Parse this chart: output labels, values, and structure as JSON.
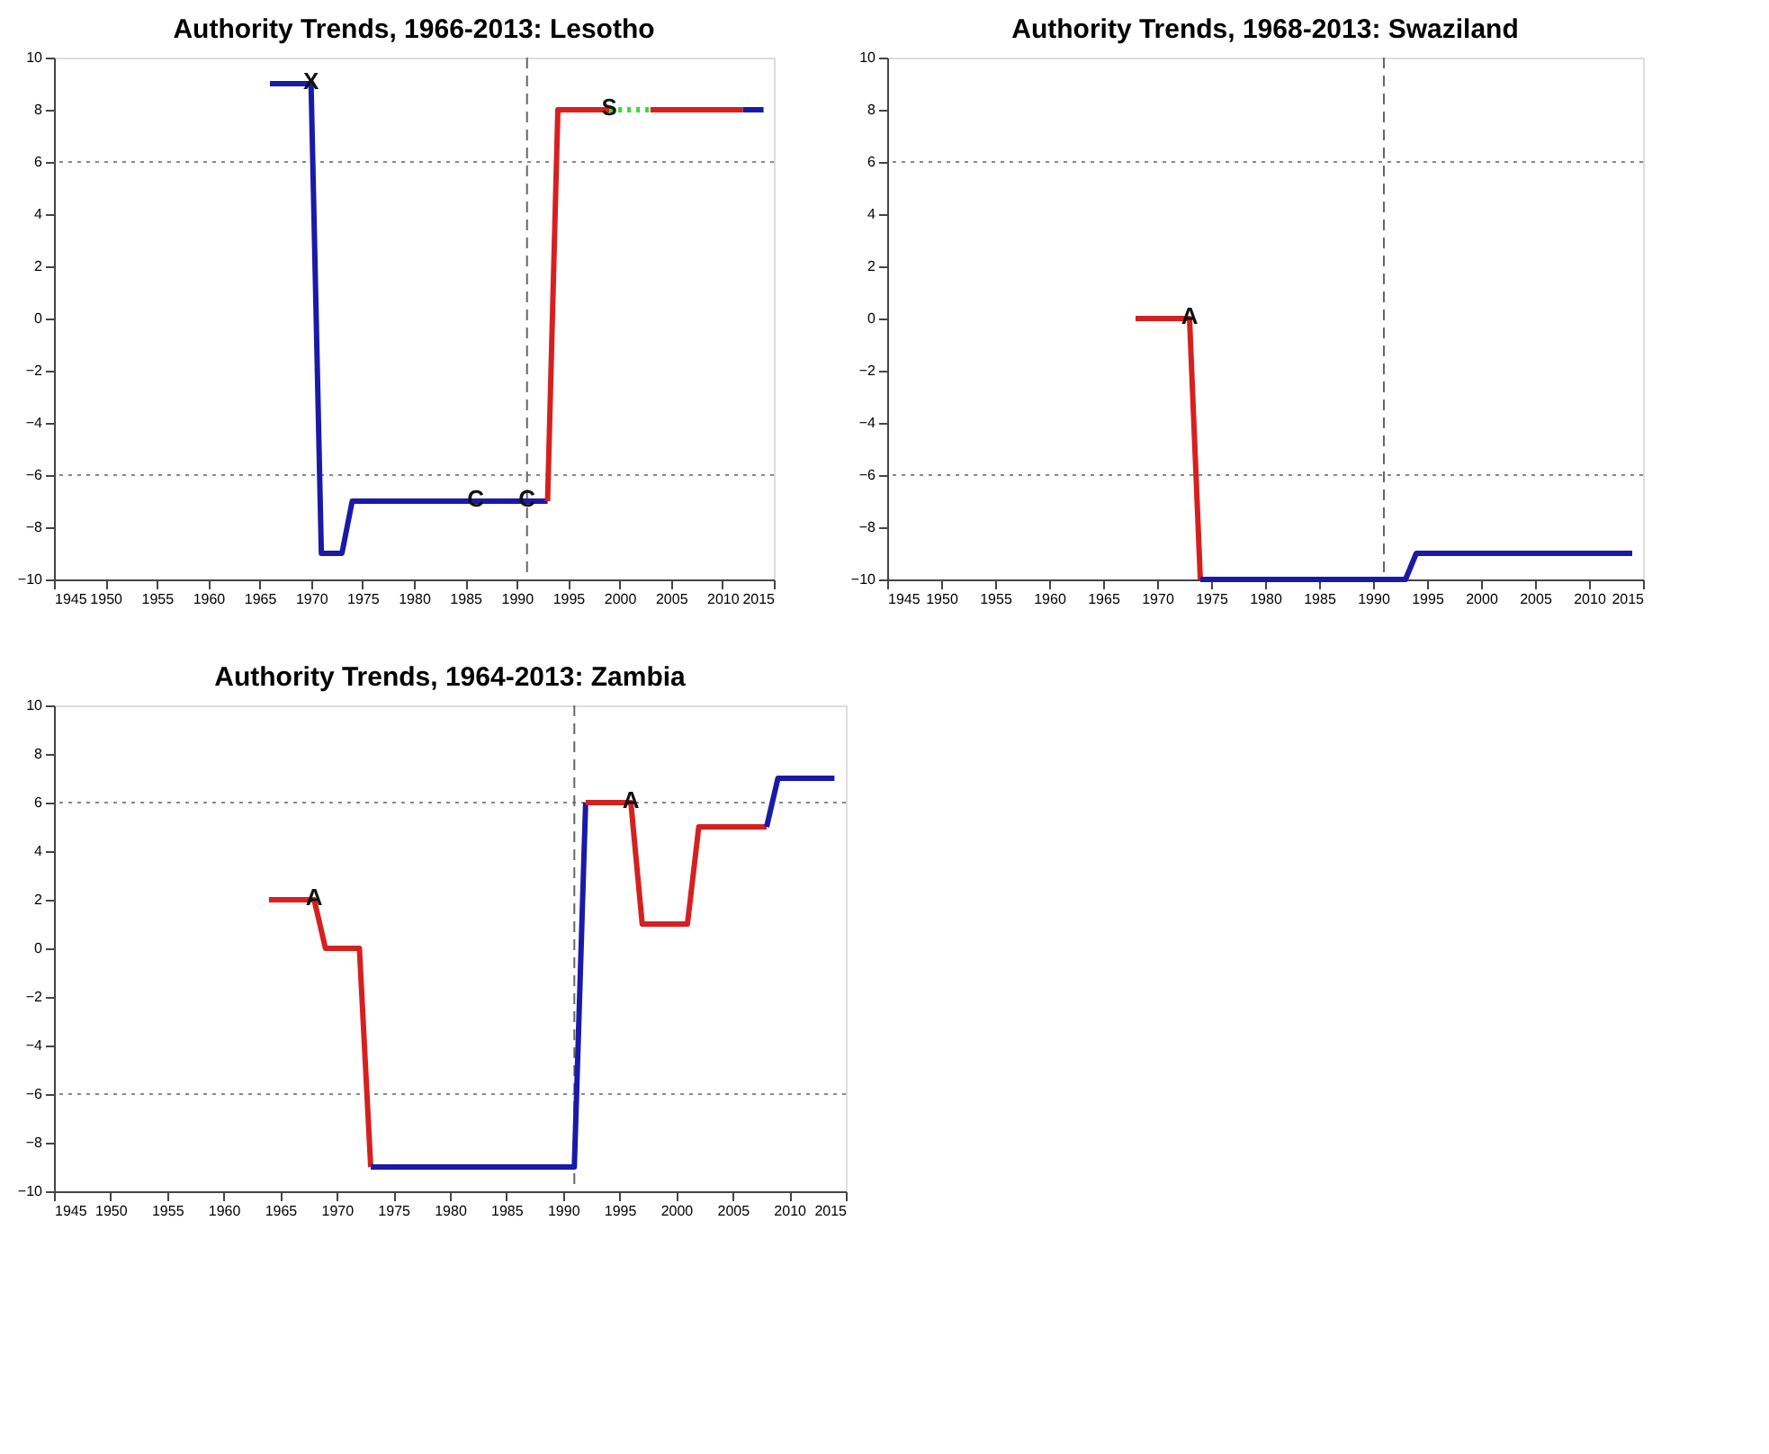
{
  "chart_data": [
    {
      "type": "line",
      "title": "Authority Trends, 1966-2013: Lesotho",
      "xlim": [
        1945,
        2015
      ],
      "xticks": [
        1945,
        1950,
        1955,
        1960,
        1965,
        1970,
        1975,
        1980,
        1985,
        1990,
        1995,
        2000,
        2005,
        2010,
        2015
      ],
      "ylim": [
        -10,
        10
      ],
      "yticks": [
        -10,
        -8,
        -6,
        -4,
        -2,
        0,
        2,
        4,
        6,
        8,
        10
      ],
      "grid": false,
      "marker": "none",
      "series": [
        {
          "color": "#1a1aa8",
          "x": [
            1966,
            1970,
            1971,
            1973,
            1974,
            1993
          ],
          "values": [
            9,
            9,
            -9,
            -9,
            -7,
            -7
          ]
        },
        {
          "color": "#d62020",
          "x": [
            1993,
            1994,
            1999
          ],
          "values": [
            -7,
            8,
            8
          ]
        },
        {
          "color": "#33dd33",
          "line_style": "dotted",
          "x": [
            1999,
            2003
          ],
          "values": [
            8,
            8
          ]
        },
        {
          "color": "#d62020",
          "x": [
            2003,
            2012
          ],
          "values": [
            8,
            8
          ]
        },
        {
          "color": "#1a1aa8",
          "x": [
            2012,
            2014
          ],
          "values": [
            8,
            8
          ]
        }
      ],
      "ref_lines": [
        {
          "axis": "y",
          "value": 6,
          "color": "#888888",
          "line_style": "dotted"
        },
        {
          "axis": "y",
          "value": -6,
          "color": "#888888",
          "line_style": "dotted"
        },
        {
          "axis": "x",
          "value": 1991,
          "color": "#666666",
          "line_style": "dashed"
        }
      ],
      "annotations": [
        {
          "text": "X",
          "x": 1970,
          "y": 9
        },
        {
          "text": "C",
          "x": 1986,
          "y": -7
        },
        {
          "text": "C",
          "x": 1991,
          "y": -7
        },
        {
          "text": "S",
          "x": 1999,
          "y": 8
        }
      ]
    },
    {
      "type": "line",
      "title": "Authority Trends, 1968-2013: Swaziland",
      "xlim": [
        1945,
        2015
      ],
      "xticks": [
        1945,
        1950,
        1955,
        1960,
        1965,
        1970,
        1975,
        1980,
        1985,
        1990,
        1995,
        2000,
        2005,
        2010,
        2015
      ],
      "ylim": [
        -10,
        10
      ],
      "yticks": [
        -10,
        -8,
        -6,
        -4,
        -2,
        0,
        2,
        4,
        6,
        8,
        10
      ],
      "grid": false,
      "marker": "none",
      "series": [
        {
          "color": "#d62020",
          "x": [
            1968,
            1973,
            1974
          ],
          "values": [
            0,
            0,
            -10
          ]
        },
        {
          "color": "#1a1aa8",
          "x": [
            1974,
            1993,
            1994,
            2014
          ],
          "values": [
            -10,
            -10,
            -9,
            -9
          ]
        }
      ],
      "ref_lines": [
        {
          "axis": "y",
          "value": 6,
          "color": "#888888",
          "line_style": "dotted"
        },
        {
          "axis": "y",
          "value": -6,
          "color": "#888888",
          "line_style": "dotted"
        },
        {
          "axis": "x",
          "value": 1991,
          "color": "#666666",
          "line_style": "dashed"
        }
      ],
      "annotations": [
        {
          "text": "A",
          "x": 1973,
          "y": 0
        }
      ]
    },
    {
      "type": "line",
      "title": "Authority Trends, 1964-2013: Zambia",
      "xlim": [
        1945,
        2015
      ],
      "xticks": [
        1945,
        1950,
        1955,
        1960,
        1965,
        1970,
        1975,
        1980,
        1985,
        1990,
        1995,
        2000,
        2005,
        2010,
        2015
      ],
      "ylim": [
        -10,
        10
      ],
      "yticks": [
        -10,
        -8,
        -6,
        -4,
        -2,
        0,
        2,
        4,
        6,
        8,
        10
      ],
      "grid": false,
      "marker": "none",
      "series": [
        {
          "color": "#d62020",
          "x": [
            1964,
            1968,
            1969,
            1972,
            1973
          ],
          "values": [
            2,
            2,
            0,
            0,
            -9
          ]
        },
        {
          "color": "#1a1aa8",
          "x": [
            1973,
            1991,
            1992
          ],
          "values": [
            -9,
            -9,
            6
          ]
        },
        {
          "color": "#d62020",
          "x": [
            1992,
            1996,
            1997,
            2001,
            2002,
            2008
          ],
          "values": [
            6,
            6,
            1,
            1,
            5,
            5
          ]
        },
        {
          "color": "#1a1aa8",
          "x": [
            2008,
            2009,
            2014
          ],
          "values": [
            5,
            7,
            7
          ]
        }
      ],
      "ref_lines": [
        {
          "axis": "y",
          "value": 6,
          "color": "#888888",
          "line_style": "dotted"
        },
        {
          "axis": "y",
          "value": -6,
          "color": "#888888",
          "line_style": "dotted"
        },
        {
          "axis": "x",
          "value": 1991,
          "color": "#666666",
          "line_style": "dashed"
        }
      ],
      "annotations": [
        {
          "text": "A",
          "x": 1968,
          "y": 2
        },
        {
          "text": "A",
          "x": 1996,
          "y": 6
        }
      ]
    }
  ]
}
